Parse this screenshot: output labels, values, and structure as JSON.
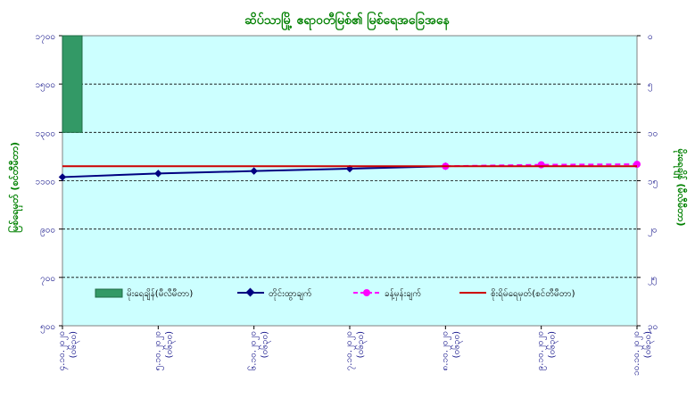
{
  "chart_data": {
    "type": "bar+line",
    "title": "ဆိပ်သာမြို့ ဧရာဝတီမြစ်၏ မြစ်ရေအခြေအနေ",
    "ylabel_left": "မြစ်ရေမှတ် (စင်တီမီတာ)",
    "ylabel_right": "မိုးရေချိန် (မီလီမီတာ)",
    "categories": [
      "၄.၁၀.၂၀၂၀ (၀၆၃၀)",
      "၅.၁၀.၂၀၂၀ (၀၆၃၀)",
      "၆.၁၀.၂၀၂၀ (၀၆၃၀)",
      "၇.၁၀.၂၀၂၀ (၀၆၃၀)",
      "၈.၁၀.၂၀၂၀ (၀၆၃၀)",
      "၉.၁၀.၂၀၂၀ (၀၆၃၀)",
      "၁၀.၁၀.၂၀၂၀ (၀၆၃၀)"
    ],
    "ylim_left": [
      500,
      1700
    ],
    "yticks_left": [
      "၅၀၀",
      "၇၀၀",
      "၉၀၀",
      "၁၁၀၀",
      "၁၃၀၀",
      "၁၅၀၀",
      "၁၇၀၀"
    ],
    "ylim_right": [
      0,
      30
    ],
    "yticks_right": [
      "၀",
      "၅",
      "၁၀",
      "၁၅",
      "၂၀",
      "၂၅",
      "၃၀"
    ],
    "right_axis_inverted": true,
    "grid": true,
    "series": [
      {
        "name": "မိုးရေချိန်(မီလီမီတာ)",
        "type": "bar",
        "axis": "right",
        "color": "#339966",
        "values": [
          10,
          null,
          null,
          null,
          null,
          null,
          null
        ]
      },
      {
        "name": "တိုင်းထွာချက်",
        "type": "line",
        "axis": "left",
        "color": "#000080",
        "marker": "diamond",
        "values": [
          1115,
          1130,
          1140,
          1150,
          1160,
          null,
          null
        ]
      },
      {
        "name": "ခန့်မှန်းချက်",
        "type": "line",
        "axis": "left",
        "color": "#FF00FF",
        "marker": "circle",
        "dashed": true,
        "values": [
          null,
          null,
          null,
          null,
          1160,
          1166,
          1168
        ]
      },
      {
        "name": "စိုးရိမ်ရေမှတ်(စင်တီမီတာ)",
        "type": "line",
        "axis": "left",
        "color": "#CC0000",
        "values": [
          1160,
          1160,
          1160,
          1160,
          1160,
          1160,
          1160
        ]
      }
    ],
    "legend": "inside-bottom"
  }
}
